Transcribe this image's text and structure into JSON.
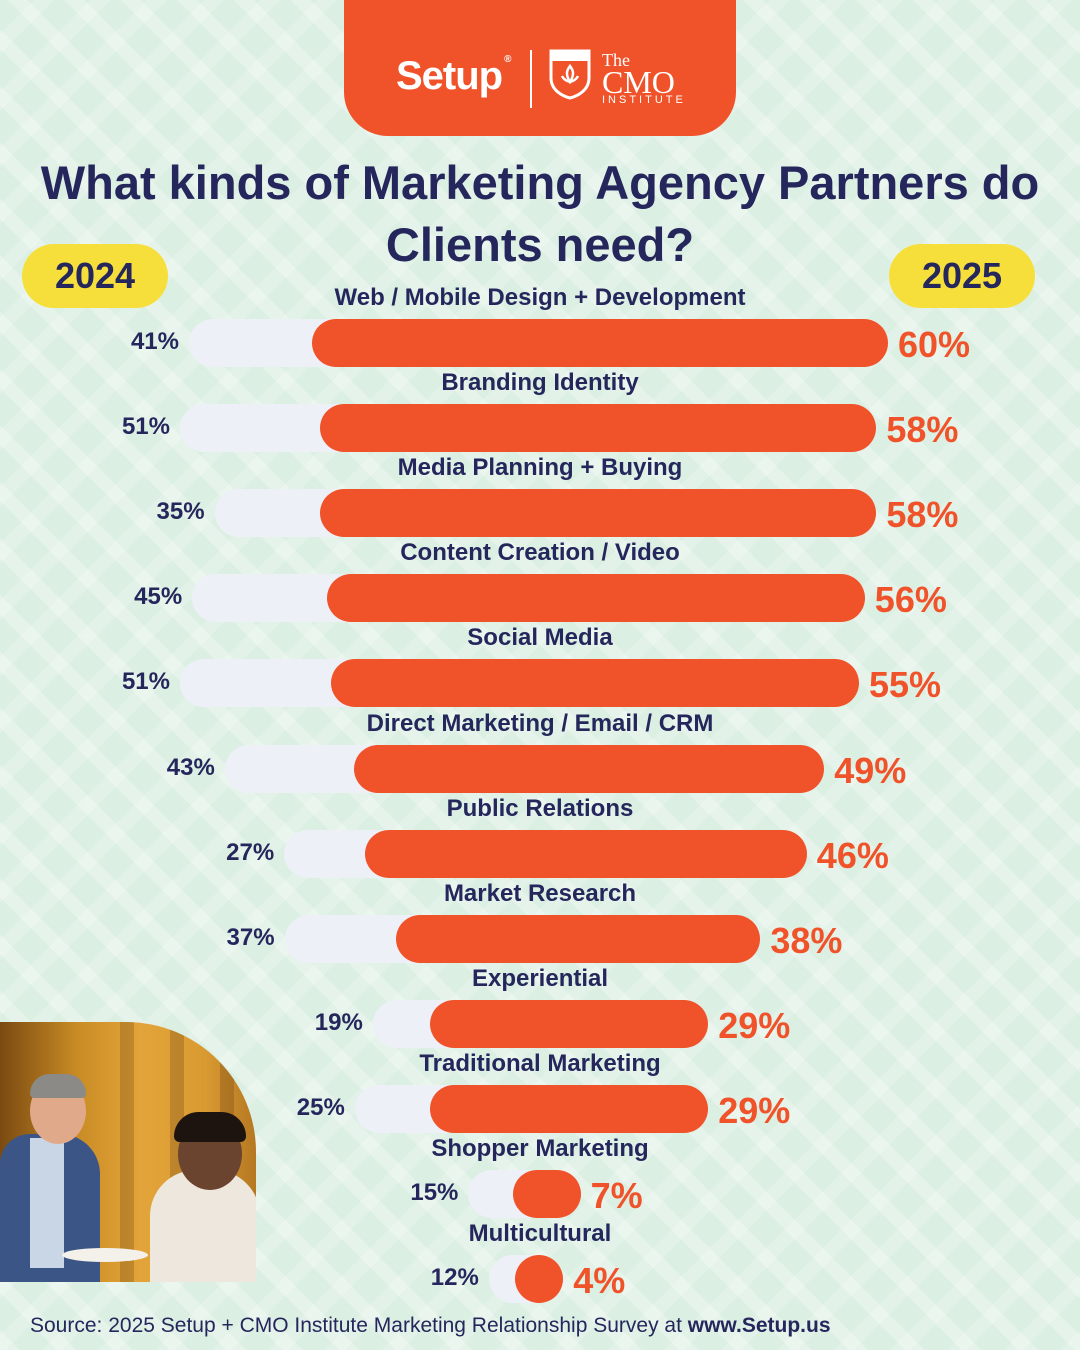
{
  "header": {
    "logo_setup": "Setup",
    "logo_cmo_the": "The",
    "logo_cmo_main": "CMO",
    "logo_cmo_sub": "INSTITUTE"
  },
  "legend": {
    "left_year": "2024",
    "right_year": "2025"
  },
  "colors": {
    "bar_2024": "#eef0f8",
    "bar_2025": "#f0522a",
    "text": "#25275c",
    "year_pill": "#f7df3b"
  },
  "photo": {
    "description_icon": "people-networking-photo"
  },
  "source": {
    "prefix": "Source: 2025 Setup + CMO Institute Marketing Relationship Survey at ",
    "link": "www.Setup.us"
  },
  "chart_data": {
    "type": "bar",
    "title": "What kinds of Marketing Agency Partners do Clients need?",
    "orientation": "horizontal",
    "categories": [
      "Web / Mobile Design + Development",
      "Branding Identity",
      "Media Planning + Buying",
      "Content Creation / Video",
      "Social Media",
      "Direct Marketing / Email / CRM",
      "Public Relations",
      "Market Research",
      "Experiential",
      "Traditional Marketing",
      "Shopper Marketing",
      "Multicultural"
    ],
    "series": [
      {
        "name": "2024",
        "values": [
          41,
          51,
          35,
          45,
          51,
          43,
          27,
          37,
          19,
          25,
          15,
          12
        ]
      },
      {
        "name": "2025",
        "values": [
          60,
          58,
          58,
          56,
          55,
          49,
          46,
          38,
          29,
          29,
          7,
          4
        ]
      }
    ],
    "value_format": "{v}%",
    "legend_placement": "top"
  }
}
